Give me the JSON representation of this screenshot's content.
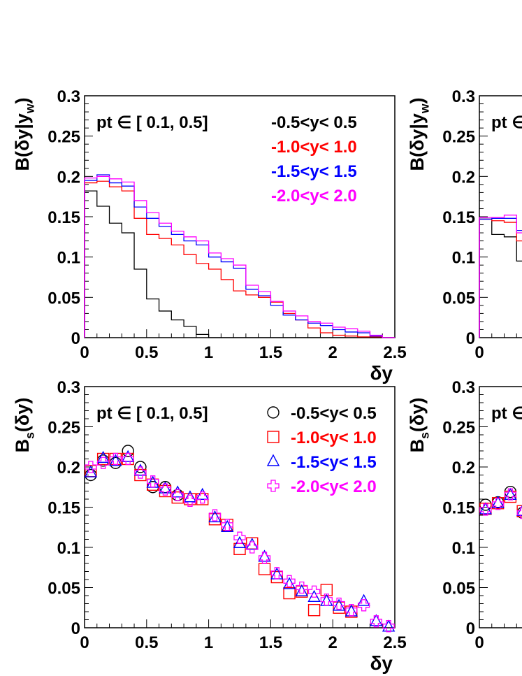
{
  "chart_data": [
    {
      "type": "line",
      "panel": "top-left",
      "ylabel": "B(δy|y_w)",
      "xlabel": "δy",
      "xlim": [
        0,
        2.5
      ],
      "ylim": [
        0,
        0.3
      ],
      "xticks": [
        "0",
        "0.5",
        "1",
        "1.5",
        "2",
        "2.5"
      ],
      "yticks": [
        "0",
        "0.05",
        "0.1",
        "0.15",
        "0.2",
        "0.25",
        "0.3"
      ],
      "annotation": "pt ∈ [ 0.1, 0.5]",
      "bin_width": 0.1,
      "series": [
        {
          "name": "-0.5<y< 0.5",
          "color": "#000000",
          "values": [
            0.182,
            0.163,
            0.142,
            0.13,
            0.085,
            0.048,
            0.033,
            0.022,
            0.014,
            0.004,
            0,
            0,
            0,
            0,
            0,
            0,
            0,
            0,
            0,
            0,
            0,
            0,
            0,
            0,
            0
          ]
        },
        {
          "name": "-1.0<y< 1.0",
          "color": "#ff0000",
          "values": [
            0.192,
            0.194,
            0.187,
            0.182,
            0.148,
            0.128,
            0.123,
            0.115,
            0.103,
            0.092,
            0.085,
            0.072,
            0.058,
            0.053,
            0.05,
            0.044,
            0.03,
            0.022,
            0.012,
            0.006,
            0.003,
            0.002,
            0.001,
            0.001,
            0
          ]
        },
        {
          "name": "-1.5<y< 1.5",
          "color": "#0000ff",
          "values": [
            0.195,
            0.202,
            0.192,
            0.188,
            0.162,
            0.148,
            0.138,
            0.128,
            0.12,
            0.115,
            0.1,
            0.094,
            0.086,
            0.06,
            0.052,
            0.04,
            0.028,
            0.022,
            0.018,
            0.015,
            0.01,
            0.007,
            0.006,
            0.002,
            0
          ]
        },
        {
          "name": "-2.0<y< 2.0",
          "color": "#ff00ff",
          "values": [
            0.198,
            0.2,
            0.197,
            0.193,
            0.17,
            0.155,
            0.142,
            0.132,
            0.125,
            0.12,
            0.105,
            0.098,
            0.09,
            0.065,
            0.057,
            0.045,
            0.033,
            0.027,
            0.02,
            0.018,
            0.013,
            0.011,
            0.008,
            0.003,
            0
          ]
        }
      ],
      "legend_position": "top-right"
    },
    {
      "type": "scatter",
      "panel": "bottom-left",
      "ylabel": "B_s(δy)",
      "xlabel": "δy",
      "xlim": [
        0,
        2.5
      ],
      "ylim": [
        0,
        0.3
      ],
      "xticks": [
        "0",
        "0.5",
        "1",
        "1.5",
        "2",
        "2.5"
      ],
      "yticks": [
        "0",
        "0.05",
        "0.1",
        "0.15",
        "0.2",
        "0.25",
        "0.3"
      ],
      "annotation": "pt ∈ [ 0.1, 0.5]",
      "x": [
        0.05,
        0.15,
        0.25,
        0.35,
        0.45,
        0.55,
        0.65,
        0.75,
        0.85,
        0.95,
        1.05,
        1.15,
        1.25,
        1.35,
        1.45,
        1.55,
        1.65,
        1.75,
        1.85,
        1.95,
        2.05,
        2.15,
        2.25,
        2.35,
        2.45
      ],
      "series": [
        {
          "name": "-0.5<y< 0.5",
          "color": "#000000",
          "marker": "circle",
          "values": [
            0.19,
            0.208,
            0.205,
            0.22,
            0.2,
            0.175,
            0.175,
            0.165,
            null,
            null,
            null,
            null,
            null,
            null,
            null,
            null,
            null,
            null,
            null,
            null,
            null,
            null,
            null,
            null,
            null
          ]
        },
        {
          "name": "-1.0<y< 1.0",
          "color": "#ff0000",
          "marker": "square",
          "values": [
            0.195,
            0.21,
            0.21,
            0.21,
            0.19,
            0.178,
            0.17,
            0.162,
            0.16,
            0.16,
            0.135,
            0.128,
            0.098,
            0.105,
            0.073,
            0.063,
            0.043,
            0.045,
            0.022,
            0.047,
            0.025,
            0.02,
            null,
            null,
            null
          ]
        },
        {
          "name": "-1.5<y< 1.5",
          "color": "#0000ff",
          "marker": "triangle",
          "values": [
            0.193,
            0.211,
            0.207,
            0.212,
            0.195,
            0.18,
            0.173,
            0.168,
            0.162,
            0.165,
            0.137,
            0.125,
            0.105,
            0.103,
            0.088,
            0.066,
            0.054,
            0.045,
            0.038,
            0.033,
            0.027,
            0.02,
            0.033,
            0.008,
            0.001
          ]
        },
        {
          "name": "-2.0<y< 2.0",
          "color": "#ff00ff",
          "marker": "cross",
          "values": [
            0.2,
            0.205,
            0.21,
            0.21,
            0.193,
            0.182,
            0.172,
            0.165,
            0.158,
            0.162,
            0.14,
            0.128,
            0.112,
            0.1,
            0.087,
            0.068,
            0.058,
            0.05,
            0.045,
            0.035,
            0.03,
            0.022,
            0.028,
            0.008,
            0.002
          ]
        }
      ],
      "legend_position": "top-right"
    },
    {
      "type": "line",
      "panel": "top-right (cropped)",
      "ylabel": "B(δy|y_w)",
      "xlim": [
        0,
        2.5
      ],
      "ylim": [
        0,
        0.3
      ],
      "xticks": [
        "0"
      ],
      "yticks": [
        "0",
        "0.05",
        "0.1",
        "0.15",
        "0.2",
        "0.25",
        "0.3"
      ],
      "annotation": "pt ∈",
      "series": [
        {
          "color": "#000000",
          "values": [
            0.147,
            0.128,
            0.125,
            0.095
          ]
        },
        {
          "color": "#ff0000",
          "values": [
            0.147,
            0.145,
            0.143,
            0.12
          ]
        },
        {
          "color": "#0000ff",
          "values": [
            0.147,
            0.148,
            0.148,
            0.133
          ]
        },
        {
          "color": "#ff00ff",
          "values": [
            0.149,
            0.149,
            0.152,
            0.13
          ]
        }
      ]
    },
    {
      "type": "scatter",
      "panel": "bottom-right (cropped)",
      "ylabel": "B_s(δy)",
      "xlim": [
        0,
        2.5
      ],
      "ylim": [
        0,
        0.3
      ],
      "xticks": [
        "0"
      ],
      "yticks": [
        "0",
        "0.05",
        "0.1",
        "0.15",
        "0.2",
        "0.25",
        "0.3"
      ],
      "annotation": "pt ∈",
      "x": [
        0.05,
        0.15,
        0.25,
        0.35
      ],
      "series": [
        {
          "color": "#000000",
          "marker": "circle",
          "values": [
            0.153,
            0.156,
            0.169,
            0.143
          ]
        },
        {
          "color": "#ff0000",
          "marker": "square",
          "values": [
            0.148,
            0.155,
            0.163,
            0.145
          ]
        },
        {
          "color": "#0000ff",
          "marker": "triangle",
          "values": [
            0.147,
            0.155,
            0.165,
            0.145
          ]
        },
        {
          "color": "#ff00ff",
          "marker": "cross",
          "values": [
            0.147,
            0.154,
            0.166,
            0.143
          ]
        }
      ]
    }
  ]
}
